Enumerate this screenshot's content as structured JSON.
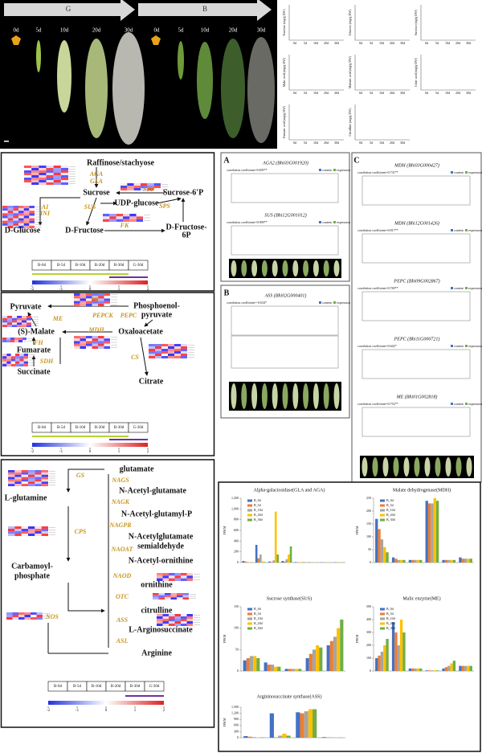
{
  "photo": {
    "groups": [
      "G",
      "B"
    ],
    "days": [
      "0d",
      "5d",
      "10d",
      "20d",
      "30d"
    ]
  },
  "metabolites": [
    "Fructose (mg/g DW)",
    "Glucose (mg/g DW)",
    "Sucrose (mg/g DW)",
    "Malic acid (mg/g DW)",
    "Malonic acid (mg/g DW)",
    "Citric acid (mg/g DW)",
    "Fumaric acid (mg/g DW)",
    "Citrulline (mg/g DW)"
  ],
  "sugar_pathway": {
    "nodes": [
      "Raffinose/stachyose",
      "Sucrose",
      "Sucrose-6'P",
      "UDP-glucose",
      "D-Glucose",
      "D-Fructose",
      "D-Fructose-",
      "6P"
    ],
    "enzymes": [
      "AGA",
      "GLA",
      "SPP",
      "SUS",
      "SPS",
      "AI",
      "INI",
      "FK"
    ]
  },
  "acid_pathway": {
    "nodes": [
      "Pyruvate",
      "Phosphoenol-",
      "pyruvate",
      "(S)-Malate",
      "Oxaloacetate",
      "Fumarate",
      "Succinate",
      "Citrate"
    ],
    "enzymes": [
      "PK",
      "ME",
      "PEPCK",
      "PEPC",
      "MDH",
      "FH",
      "SDH",
      "CS"
    ]
  },
  "arginine_pathway": {
    "nodes": [
      "glutamate",
      "L-glutamine",
      "N-Acetyl-glutamate",
      "N-Acetyl-glutamyl-P",
      "N-Acetylglutamate",
      "semialdehyde",
      "N-Acetyl-ornithine",
      "Carbamoyl-",
      "phosphate",
      "ornithine",
      "citrulline",
      "L-Arginosuccinate",
      "Arginine"
    ],
    "enzymes": [
      "GS",
      "NAGS",
      "NAGK",
      "NAGPR",
      "CPS",
      "NAOAT",
      "NAOD",
      "OTC",
      "ASS",
      "NOS",
      "ASL"
    ]
  },
  "stages": [
    "B-0d",
    "B-5d",
    "B-10d",
    "B-20d",
    "B-30d",
    "G-30d"
  ],
  "scale": [
    -2,
    -1,
    0,
    1,
    2
  ],
  "legend": [
    "content",
    "expression"
  ],
  "panels": [
    {
      "label": "A",
      "charts": [
        {
          "gene": "AGA2 (Bhi03G001920)",
          "correlation": "correlation coefficient=0.695**"
        },
        {
          "gene": "SUS (Bhi12G001012)",
          "correlation": "correlation coefficient=0.909**"
        }
      ]
    },
    {
      "label": "B",
      "charts": [
        {
          "gene": "ASS (Bhi02G000401)",
          "correlation": "correlation coefficient=-0.634*"
        }
      ]
    },
    {
      "label": "C",
      "charts": [
        {
          "gene": "MDH (Bhi03G000427)",
          "correlation": "correlation coefficient=0.731**"
        },
        {
          "gene": "MDH (Bhi12G001426)",
          "correlation": "correlation coefficient=0.817**"
        },
        {
          "gene": "PEPC (Bhi09G002867)",
          "correlation": "correlation coefficient=0.769**"
        },
        {
          "gene": "PEPC (Bhi11G000721)",
          "correlation": "correlation coefficient=0.642*"
        },
        {
          "gene": "ME (Bhi01G002818)",
          "correlation": "correlation coefficient=0.752**"
        }
      ]
    }
  ],
  "fpkm": {
    "ylabel": "FPKM",
    "series": [
      {
        "name": "B_0d",
        "color": "#4472c4"
      },
      {
        "name": "B_5d",
        "color": "#ed7d31"
      },
      {
        "name": "B_10d",
        "color": "#a5a5a5"
      },
      {
        "name": "B_20d",
        "color": "#ffc000"
      },
      {
        "name": "B_30d",
        "color": "#70ad47"
      }
    ],
    "charts": [
      {
        "type": "bar",
        "title": "Alpha-galactosidase(GLA and AGA)",
        "ylim": [
          0,
          1200
        ],
        "yticks": [
          0,
          200,
          400,
          600,
          800,
          {
            "value": 1000,
            "label": "1,000"
          },
          {
            "value": 1200,
            "label": "1,200"
          }
        ],
        "values": [
          [
            30,
            330,
            20,
            30,
            10,
            5,
            5,
            5
          ],
          [
            20,
            80,
            10,
            20,
            5,
            5,
            5,
            5
          ],
          [
            10,
            150,
            40,
            60,
            5,
            5,
            5,
            5
          ],
          [
            5,
            20,
            950,
            150,
            10,
            5,
            5,
            5
          ],
          [
            5,
            10,
            150,
            300,
            10,
            5,
            5,
            5
          ]
        ]
      },
      {
        "type": "bar",
        "title": "Malate dehydrogenase(MDH)",
        "ylim": [
          0,
          250
        ],
        "yticks": [
          0,
          50,
          100,
          150,
          200,
          250
        ],
        "values": [
          [
            170,
            20,
            10,
            240,
            10,
            20
          ],
          [
            130,
            15,
            10,
            230,
            10,
            15
          ],
          [
            90,
            10,
            10,
            230,
            10,
            15
          ],
          [
            60,
            10,
            10,
            250,
            10,
            15
          ],
          [
            40,
            10,
            10,
            240,
            10,
            15
          ]
        ]
      },
      {
        "type": "bar",
        "title": "Sucrose synthase(SUS)",
        "ylim": [
          0,
          150
        ],
        "yticks": [
          0,
          50,
          100,
          150
        ],
        "values": [
          [
            25,
            20,
            5,
            30,
            60
          ],
          [
            30,
            15,
            5,
            40,
            70
          ],
          [
            35,
            15,
            5,
            50,
            80
          ],
          [
            35,
            10,
            5,
            60,
            100
          ],
          [
            30,
            10,
            5,
            55,
            120
          ]
        ]
      },
      {
        "type": "bar",
        "title": "Malic enzyme(ME)",
        "ylim": [
          0,
          500
        ],
        "yticks": [
          0,
          100,
          200,
          300,
          400,
          500
        ],
        "values": [
          [
            100,
            380,
            20,
            5,
            20,
            40
          ],
          [
            120,
            300,
            20,
            5,
            30,
            40
          ],
          [
            150,
            200,
            20,
            5,
            40,
            40
          ],
          [
            200,
            400,
            20,
            5,
            60,
            40
          ],
          [
            250,
            300,
            20,
            5,
            80,
            40
          ]
        ]
      },
      {
        "type": "bar",
        "title": "Argininosuccinate synthase(ASS)",
        "ylim": [
          0,
          1500
        ],
        "yticks": [
          0,
          300,
          600,
          900,
          {
            "value": 1200,
            "label": "1,200"
          },
          {
            "value": 1500,
            "label": "1,500"
          }
        ],
        "values": [
          [
            80,
            1200,
            1250,
            30
          ],
          [
            50,
            20,
            1200,
            20
          ],
          [
            30,
            100,
            1300,
            20
          ],
          [
            20,
            200,
            1400,
            20
          ],
          [
            20,
            100,
            1400,
            10
          ]
        ]
      }
    ]
  }
}
